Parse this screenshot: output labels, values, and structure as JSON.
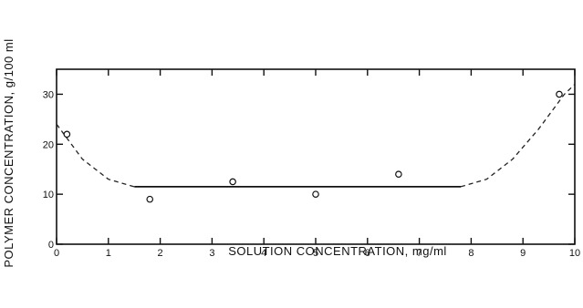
{
  "chart_data": {
    "type": "scatter",
    "title": "",
    "xlabel": "SOLUTION CONCENTRATION, mg/ml",
    "ylabel": "POLYMER CONCENTRATION, g/100 ml",
    "xlim": [
      0,
      10
    ],
    "ylim": [
      0,
      35
    ],
    "x_ticks": [
      "0",
      "1",
      "2",
      "3",
      "4",
      "5",
      "6",
      "7",
      "8",
      "9",
      "10"
    ],
    "y_ticks": [
      "0",
      "10",
      "20",
      "30"
    ],
    "grid": false,
    "series": [
      {
        "style": "open-circle",
        "points": [
          {
            "x": 0.2,
            "y": 22
          },
          {
            "x": 1.8,
            "y": 9
          },
          {
            "x": 3.4,
            "y": 12.5
          },
          {
            "x": 5.0,
            "y": 10
          },
          {
            "x": 6.6,
            "y": 14
          },
          {
            "x": 9.7,
            "y": 30
          }
        ]
      }
    ],
    "fit_curve": {
      "style": "dashed-solid",
      "points": [
        {
          "x": 0.0,
          "y": 24
        },
        {
          "x": 0.5,
          "y": 17
        },
        {
          "x": 1.0,
          "y": 13
        },
        {
          "x": 1.5,
          "y": 11.5
        },
        {
          "x": 3.0,
          "y": 11.5
        },
        {
          "x": 5.0,
          "y": 11.5
        },
        {
          "x": 7.0,
          "y": 11.5
        },
        {
          "x": 7.8,
          "y": 11.5
        },
        {
          "x": 8.3,
          "y": 13
        },
        {
          "x": 8.8,
          "y": 17
        },
        {
          "x": 9.3,
          "y": 23
        },
        {
          "x": 9.8,
          "y": 30
        },
        {
          "x": 10.0,
          "y": 32
        }
      ]
    }
  }
}
